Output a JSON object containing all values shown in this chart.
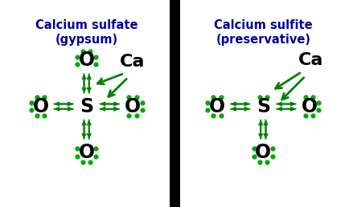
{
  "title1": "Calcium sulfate",
  "subtitle1": "(gypsum)",
  "title2": "Calcium sulfite",
  "subtitle2": "(preservative)",
  "title_color": "#000099",
  "atom_color": "#000000",
  "bond_color": "#008000",
  "dot_color": "#00aa00",
  "bg_color": "#ffffff",
  "divider_color": "#000000",
  "fig_width": 4.35,
  "fig_height": 2.58,
  "dpi": 100
}
